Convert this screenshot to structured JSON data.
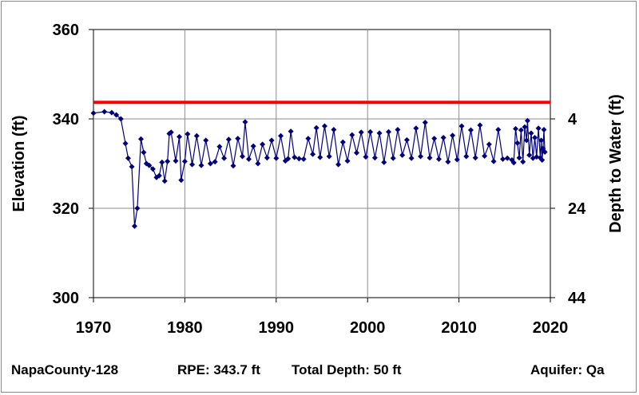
{
  "chart_data": {
    "type": "line",
    "xlim": [
      1970,
      2020
    ],
    "ylim": [
      300,
      360
    ],
    "y2lim": [
      44,
      -16
    ],
    "xticks": [
      1970,
      1980,
      1990,
      2000,
      2010,
      2020
    ],
    "yticks": [
      300,
      320,
      340,
      360
    ],
    "y2ticks": [
      4,
      24,
      44
    ],
    "ylabel": "Elevation (ft)",
    "y2label": "Depth to Water (ft)",
    "grid": true,
    "reference_line": {
      "y": 343.7,
      "color": "#ff0000"
    },
    "series": [
      {
        "color": "#00007f",
        "marker": "diamond",
        "points": [
          [
            1970.0,
            341.3
          ],
          [
            1971.2,
            341.6
          ],
          [
            1972.0,
            341.4
          ],
          [
            1972.5,
            340.9
          ],
          [
            1973.0,
            340.0
          ],
          [
            1973.5,
            334.5
          ],
          [
            1973.8,
            331.2
          ],
          [
            1974.2,
            329.3
          ],
          [
            1974.5,
            316.0
          ],
          [
            1974.8,
            320.0
          ],
          [
            1975.2,
            335.5
          ],
          [
            1975.5,
            332.5
          ],
          [
            1975.8,
            330.0
          ],
          [
            1976.1,
            329.6
          ],
          [
            1976.5,
            328.8
          ],
          [
            1976.9,
            326.9
          ],
          [
            1977.2,
            327.3
          ],
          [
            1977.5,
            330.3
          ],
          [
            1977.8,
            326.1
          ],
          [
            1978.1,
            330.5
          ],
          [
            1978.3,
            336.7
          ],
          [
            1978.5,
            337.0
          ],
          [
            1979.0,
            330.6
          ],
          [
            1979.4,
            336.0
          ],
          [
            1979.6,
            326.3
          ],
          [
            1980.0,
            330.5
          ],
          [
            1980.3,
            336.6
          ],
          [
            1980.8,
            329.8
          ],
          [
            1981.3,
            336.2
          ],
          [
            1981.8,
            329.6
          ],
          [
            1982.3,
            335.2
          ],
          [
            1982.8,
            330.0
          ],
          [
            1983.3,
            330.4
          ],
          [
            1983.8,
            333.8
          ],
          [
            1984.3,
            331.2
          ],
          [
            1984.8,
            335.4
          ],
          [
            1985.3,
            329.5
          ],
          [
            1985.8,
            335.6
          ],
          [
            1986.3,
            331.6
          ],
          [
            1986.6,
            339.3
          ],
          [
            1987.0,
            331.0
          ],
          [
            1987.5,
            333.9
          ],
          [
            1988.0,
            330.0
          ],
          [
            1988.5,
            334.3
          ],
          [
            1989.0,
            331.3
          ],
          [
            1989.5,
            335.2
          ],
          [
            1990.0,
            331.2
          ],
          [
            1990.5,
            336.2
          ],
          [
            1991.0,
            330.6
          ],
          [
            1991.3,
            331.1
          ],
          [
            1991.6,
            337.2
          ],
          [
            1992.0,
            331.4
          ],
          [
            1992.5,
            331.1
          ],
          [
            1993.0,
            331.0
          ],
          [
            1993.5,
            335.6
          ],
          [
            1994.0,
            332.1
          ],
          [
            1994.4,
            338.0
          ],
          [
            1994.8,
            331.4
          ],
          [
            1995.3,
            338.4
          ],
          [
            1995.8,
            331.6
          ],
          [
            1996.3,
            337.6
          ],
          [
            1996.8,
            329.8
          ],
          [
            1997.3,
            334.8
          ],
          [
            1997.8,
            330.6
          ],
          [
            1998.3,
            336.4
          ],
          [
            1998.8,
            332.4
          ],
          [
            1999.3,
            337.0
          ],
          [
            1999.8,
            331.5
          ],
          [
            2000.3,
            337.1
          ],
          [
            2000.8,
            331.3
          ],
          [
            2001.3,
            336.8
          ],
          [
            2001.8,
            330.3
          ],
          [
            2002.3,
            337.1
          ],
          [
            2002.8,
            331.2
          ],
          [
            2003.3,
            337.6
          ],
          [
            2003.8,
            331.9
          ],
          [
            2004.3,
            335.3
          ],
          [
            2004.8,
            331.2
          ],
          [
            2005.3,
            337.9
          ],
          [
            2005.8,
            331.6
          ],
          [
            2006.3,
            339.2
          ],
          [
            2006.8,
            331.3
          ],
          [
            2007.3,
            335.6
          ],
          [
            2007.8,
            331.0
          ],
          [
            2008.3,
            335.8
          ],
          [
            2008.8,
            330.4
          ],
          [
            2009.3,
            336.3
          ],
          [
            2009.8,
            330.9
          ],
          [
            2010.3,
            338.4
          ],
          [
            2010.8,
            331.6
          ],
          [
            2011.3,
            337.5
          ],
          [
            2011.8,
            331.3
          ],
          [
            2012.3,
            338.6
          ],
          [
            2012.8,
            331.7
          ],
          [
            2013.3,
            334.3
          ],
          [
            2013.8,
            330.5
          ],
          [
            2014.3,
            337.6
          ],
          [
            2014.8,
            331.0
          ],
          [
            2015.3,
            331.2
          ],
          [
            2015.8,
            330.8
          ],
          [
            2016.0,
            330.2
          ],
          [
            2016.2,
            337.8
          ],
          [
            2016.4,
            334.6
          ],
          [
            2016.6,
            331.3
          ],
          [
            2016.8,
            337.5
          ],
          [
            2017.0,
            330.4
          ],
          [
            2017.2,
            338.2
          ],
          [
            2017.4,
            335.2
          ],
          [
            2017.5,
            339.6
          ],
          [
            2017.7,
            331.9
          ],
          [
            2017.9,
            336.8
          ],
          [
            2018.1,
            331.2
          ],
          [
            2018.3,
            335.8
          ],
          [
            2018.5,
            331.5
          ],
          [
            2018.7,
            337.9
          ],
          [
            2018.9,
            331.3
          ],
          [
            2019.0,
            335.2
          ],
          [
            2019.1,
            330.8
          ],
          [
            2019.2,
            333.4
          ],
          [
            2019.3,
            337.6
          ],
          [
            2019.4,
            332.6
          ]
        ]
      }
    ]
  },
  "footer": {
    "well_id": "NapaCounty-128",
    "rpe": "RPE: 343.7 ft",
    "total_depth": "Total Depth: 50 ft",
    "aquifer": "Aquifer: Qa"
  }
}
